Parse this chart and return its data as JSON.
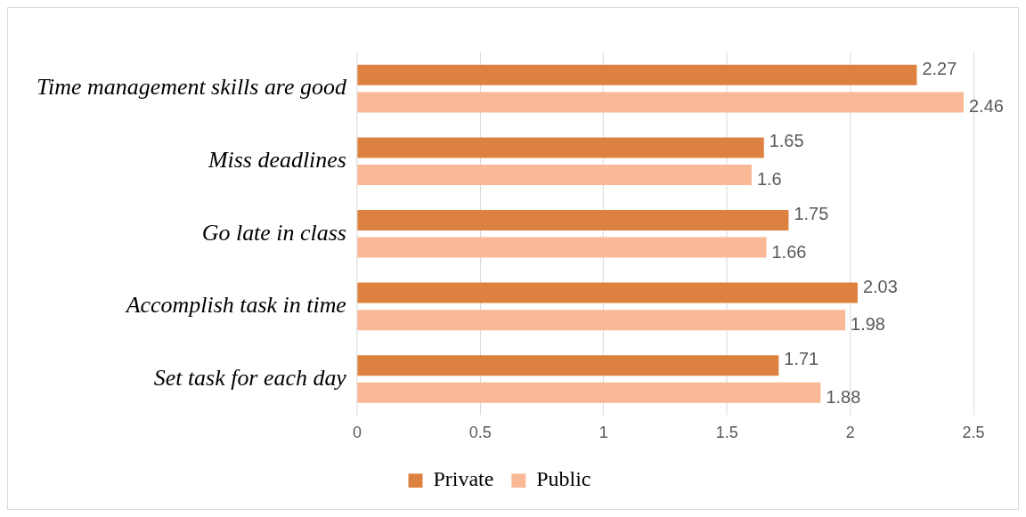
{
  "chart_data": {
    "type": "bar",
    "orientation": "horizontal",
    "categories": [
      "Time management skills are good",
      "Miss deadlines",
      "Go late in class",
      "Accomplish task in time",
      "Set task for each day"
    ],
    "series": [
      {
        "name": "Private",
        "color": "#dc8140",
        "values": [
          2.27,
          1.65,
          1.75,
          2.03,
          1.71
        ]
      },
      {
        "name": "Public",
        "color": "#f9b996",
        "values": [
          2.46,
          1.6,
          1.66,
          1.98,
          1.88
        ]
      }
    ],
    "xlim": [
      0,
      2.5
    ],
    "xticks": [
      0,
      0.5,
      1,
      1.5,
      2,
      2.5
    ],
    "grid": "x",
    "legend": "bottom",
    "data_labels": true
  }
}
